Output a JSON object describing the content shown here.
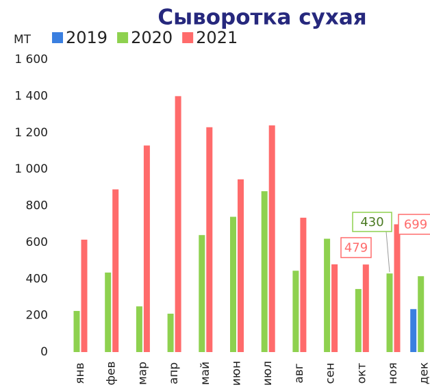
{
  "chart_data": {
    "type": "bar",
    "title": "Сыворотка сухая",
    "y_label": "MT",
    "categories": [
      "янв",
      "фев",
      "мар",
      "апр",
      "май",
      "июн",
      "июл",
      "авг",
      "сен",
      "окт",
      "ноя",
      "дек"
    ],
    "series": [
      {
        "name": "2019",
        "color": "#3a7fe0",
        "values": [
          null,
          null,
          null,
          null,
          null,
          null,
          null,
          null,
          null,
          null,
          null,
          235
        ]
      },
      {
        "name": "2020",
        "color": "#8ed14f",
        "values": [
          225,
          435,
          250,
          210,
          640,
          740,
          880,
          445,
          620,
          345,
          430,
          415
        ],
        "value_labels": [
          null,
          null,
          null,
          null,
          null,
          null,
          null,
          null,
          null,
          null,
          "430",
          null
        ]
      },
      {
        "name": "2021",
        "color": "#ff6b6b",
        "values": [
          615,
          890,
          1130,
          1400,
          1230,
          945,
          1240,
          735,
          480,
          479,
          699,
          null
        ],
        "value_labels": [
          null,
          null,
          null,
          null,
          null,
          null,
          null,
          null,
          null,
          "479",
          "699",
          null
        ]
      }
    ],
    "ylim": [
      0,
      1600
    ],
    "yticks": [
      0,
      200,
      400,
      600,
      800,
      {
        "value": 1000,
        "label": "1 000"
      },
      {
        "value": 1200,
        "label": "1 200"
      },
      {
        "value": 1400,
        "label": "1 400"
      },
      {
        "value": 1600,
        "label": "1 600"
      }
    ],
    "grid": false
  }
}
